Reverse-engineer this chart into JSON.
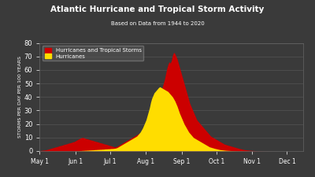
{
  "title": "Atlantic Hurricane and Tropical Storm Activity",
  "subtitle": "Based on Data from 1944 to 2020",
  "ylabel": "STORMS PER DAY PER 100 YEARS",
  "background_color": "#3a3a3a",
  "axes_bg_color": "#3a3a3a",
  "title_color": "white",
  "subtitle_color": "white",
  "ylabel_color": "white",
  "tick_color": "white",
  "grid_color": "#555555",
  "ts_color": "#cc0000",
  "hur_color": "#ffdd00",
  "ylim": [
    0,
    80
  ],
  "yticks": [
    0,
    10,
    20,
    30,
    40,
    50,
    60,
    70,
    80
  ],
  "legend_labels": [
    "Hurricanes and Tropical Storms",
    "Hurricanes"
  ],
  "legend_colors": [
    "#cc0000",
    "#ffdd00"
  ],
  "xtick_labels": [
    "May 1",
    "Jun 1",
    "Jul 1",
    "Aug 1",
    "Sep 1",
    "Oct 1",
    "Nov 1",
    "Dec 1"
  ],
  "month_tick_days": [
    0,
    31,
    61,
    92,
    123,
    153,
    184,
    214
  ],
  "n_days": 229,
  "ts_data": [
    0.3,
    0.4,
    0.5,
    0.6,
    0.7,
    0.8,
    1.0,
    1.2,
    1.5,
    1.8,
    2.0,
    2.3,
    2.5,
    2.8,
    3.0,
    3.2,
    3.5,
    3.8,
    4.0,
    4.2,
    4.5,
    4.8,
    5.0,
    5.2,
    5.5,
    5.8,
    6.0,
    6.2,
    6.5,
    6.8,
    7.0,
    7.5,
    8.0,
    8.5,
    9.0,
    9.5,
    9.8,
    10.0,
    9.8,
    9.5,
    9.2,
    9.0,
    8.8,
    8.5,
    8.2,
    8.0,
    7.8,
    7.5,
    7.2,
    7.0,
    6.8,
    6.5,
    6.2,
    6.0,
    5.8,
    5.5,
    5.2,
    5.0,
    4.8,
    4.5,
    4.2,
    4.0,
    3.8,
    3.5,
    3.2,
    3.0,
    3.2,
    3.5,
    4.0,
    4.5,
    5.0,
    5.5,
    6.0,
    6.5,
    7.0,
    7.5,
    8.0,
    8.5,
    9.0,
    9.5,
    10.0,
    10.5,
    11.0,
    11.5,
    12.0,
    12.5,
    13.0,
    13.5,
    14.0,
    14.5,
    15.0,
    16.0,
    17.0,
    18.0,
    19.0,
    21.0,
    23.0,
    25.0,
    27.0,
    29.0,
    31.0,
    33.0,
    35.0,
    38.0,
    41.0,
    44.0,
    47.0,
    50.0,
    53.0,
    57.0,
    61.0,
    64.0,
    66.0,
    65.0,
    67.0,
    71.0,
    73.0,
    72.0,
    70.0,
    68.0,
    65.0,
    62.0,
    59.0,
    56.0,
    53.0,
    50.0,
    47.0,
    44.0,
    41.0,
    38.0,
    35.0,
    33.0,
    31.0,
    29.0,
    27.0,
    25.0,
    23.0,
    22.0,
    21.0,
    20.0,
    19.0,
    18.0,
    17.0,
    16.0,
    15.0,
    14.0,
    13.0,
    12.0,
    11.0,
    10.5,
    10.0,
    9.5,
    9.0,
    8.5,
    8.0,
    7.5,
    7.0,
    6.5,
    6.0,
    5.5,
    5.0,
    4.8,
    4.5,
    4.2,
    4.0,
    3.8,
    3.5,
    3.3,
    3.0,
    2.8,
    2.5,
    2.3,
    2.0,
    1.8,
    1.6,
    1.4,
    1.2,
    1.0,
    0.9,
    0.8,
    0.7,
    0.6,
    0.5,
    0.45,
    0.4,
    0.35,
    0.3,
    0.25,
    0.2,
    0.18,
    0.15,
    0.12,
    0.1,
    0.08,
    0.07,
    0.06,
    0.05,
    0.04,
    0.03,
    0.03,
    0.02,
    0.02,
    0.01,
    0.01,
    0.01,
    0.01,
    0.0,
    0.0,
    0.0,
    0.0,
    0.0,
    0.0,
    0.0,
    0.0,
    0.0,
    0.0,
    0.0,
    0.0,
    0.0,
    0.0,
    0.0,
    0.0,
    0.0,
    0.0,
    0.0,
    0.0,
    0.0,
    0.0,
    0.0
  ],
  "hur_data": [
    0.0,
    0.0,
    0.0,
    0.0,
    0.0,
    0.0,
    0.0,
    0.0,
    0.0,
    0.0,
    0.0,
    0.0,
    0.0,
    0.0,
    0.0,
    0.0,
    0.0,
    0.0,
    0.0,
    0.0,
    0.0,
    0.0,
    0.0,
    0.0,
    0.0,
    0.0,
    0.0,
    0.0,
    0.0,
    0.0,
    0.0,
    0.1,
    0.1,
    0.2,
    0.2,
    0.3,
    0.3,
    0.4,
    0.4,
    0.5,
    0.5,
    0.6,
    0.6,
    0.7,
    0.7,
    0.8,
    0.8,
    0.9,
    1.0,
    1.0,
    1.1,
    1.1,
    1.2,
    1.2,
    1.3,
    1.3,
    1.4,
    1.5,
    1.5,
    1.6,
    1.6,
    1.7,
    1.8,
    1.8,
    1.9,
    2.0,
    2.2,
    2.5,
    3.0,
    3.5,
    4.0,
    4.5,
    5.0,
    5.5,
    6.0,
    6.5,
    7.0,
    7.5,
    8.0,
    8.5,
    9.0,
    9.5,
    10.0,
    10.5,
    11.0,
    12.0,
    13.0,
    14.0,
    15.5,
    17.0,
    19.0,
    21.0,
    23.0,
    26.0,
    29.0,
    32.0,
    36.0,
    39.0,
    41.0,
    43.0,
    44.0,
    45.0,
    46.0,
    47.0,
    47.5,
    47.0,
    46.5,
    46.0,
    45.5,
    45.0,
    44.5,
    44.0,
    43.0,
    42.0,
    41.0,
    40.0,
    38.5,
    37.0,
    35.0,
    33.0,
    30.5,
    28.0,
    26.0,
    24.0,
    22.0,
    20.0,
    18.5,
    17.0,
    15.5,
    14.0,
    13.0,
    12.0,
    11.0,
    10.0,
    9.5,
    9.0,
    8.5,
    8.0,
    7.5,
    7.0,
    6.5,
    6.0,
    5.5,
    5.0,
    4.5,
    4.0,
    3.5,
    3.0,
    2.8,
    2.5,
    2.3,
    2.0,
    1.8,
    1.6,
    1.4,
    1.2,
    1.0,
    0.9,
    0.8,
    0.7,
    0.6,
    0.5,
    0.45,
    0.4,
    0.35,
    0.3,
    0.25,
    0.2,
    0.18,
    0.15,
    0.12,
    0.1,
    0.08,
    0.07,
    0.06,
    0.05,
    0.04,
    0.03,
    0.02,
    0.02,
    0.01,
    0.01,
    0.01,
    0.0,
    0.0,
    0.0,
    0.0,
    0.0,
    0.0,
    0.0,
    0.0,
    0.0,
    0.0,
    0.0,
    0.0,
    0.0,
    0.0,
    0.0,
    0.0,
    0.0,
    0.0,
    0.0,
    0.0,
    0.0,
    0.0,
    0.0,
    0.0,
    0.0,
    0.0,
    0.0,
    0.0,
    0.0,
    0.0,
    0.0,
    0.0,
    0.0,
    0.0,
    0.0,
    0.0,
    0.0,
    0.0,
    0.0,
    0.0,
    0.0,
    0.0,
    0.0,
    0.0,
    0.0,
    0.0
  ]
}
